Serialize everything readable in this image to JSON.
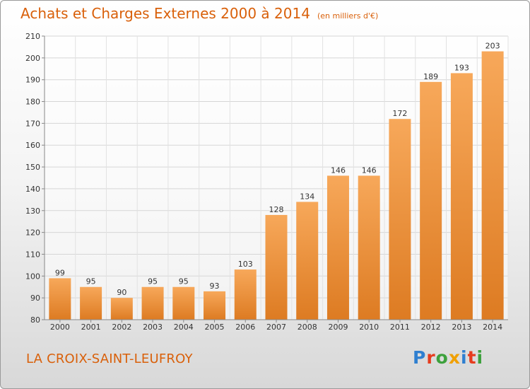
{
  "header": {
    "title": "Achats et Charges Externes 2000 à 2014",
    "unit": "(en milliers d'€)"
  },
  "commune": "LA CROIX-SAINT-LEUFROY",
  "brand": {
    "letters": [
      "P",
      "r",
      "o",
      "x",
      "i",
      "t",
      "i"
    ],
    "colors": [
      "#2f7fd0",
      "#e63c1e",
      "#3da13d",
      "#f0a000",
      "#2f7fd0",
      "#e63c1e",
      "#3da13d"
    ]
  },
  "colors": {
    "accent": "#d9600a",
    "bar_top": "#f7a85a",
    "bar_bottom": "#dd7b22"
  },
  "chart_data": {
    "type": "bar",
    "categories": [
      "2000",
      "2001",
      "2002",
      "2003",
      "2004",
      "2005",
      "2006",
      "2007",
      "2008",
      "2009",
      "2010",
      "2011",
      "2012",
      "2013",
      "2014"
    ],
    "values": [
      99,
      95,
      90,
      95,
      95,
      93,
      103,
      128,
      134,
      146,
      146,
      172,
      189,
      193,
      203
    ],
    "title": "Achats et Charges Externes 2000 à 2014",
    "xlabel": "",
    "ylabel": "",
    "ylim": [
      80,
      210
    ],
    "yticks": [
      80,
      90,
      100,
      110,
      120,
      130,
      140,
      150,
      160,
      170,
      180,
      190,
      200,
      210
    ],
    "grid": true,
    "legend": "none"
  }
}
